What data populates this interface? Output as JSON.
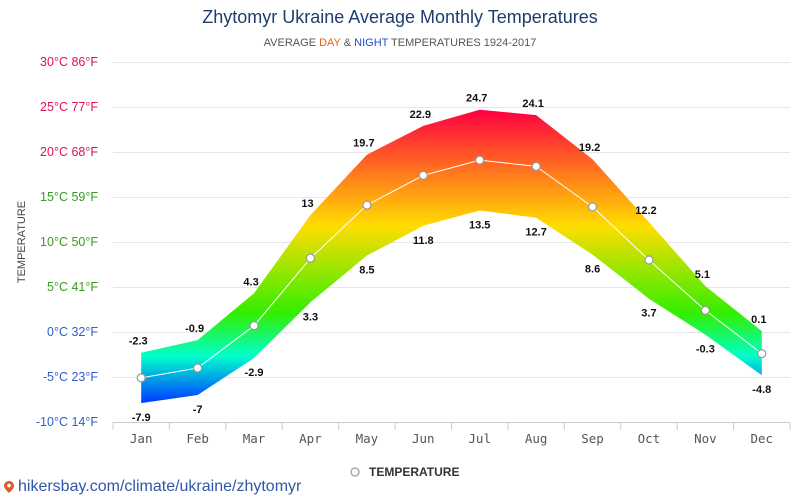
{
  "chart_data": {
    "type": "area",
    "title": "Zhytomyr Ukraine Average Monthly Temperatures",
    "subtitle": {
      "prefix": "AVERAGE ",
      "day": "DAY",
      "amp": " & ",
      "night": "NIGHT",
      "suffix": " TEMPERATURES 1924-2017"
    },
    "ylabel": "TEMPERATURE",
    "categories": [
      "Jan",
      "Feb",
      "Mar",
      "Apr",
      "May",
      "Jun",
      "Jul",
      "Aug",
      "Sep",
      "Oct",
      "Nov",
      "Dec"
    ],
    "series": [
      {
        "name": "DAY",
        "values": [
          -2.3,
          -0.9,
          4.3,
          13,
          19.7,
          22.9,
          24.7,
          24.1,
          19.2,
          12.2,
          5.1,
          0.1
        ]
      },
      {
        "name": "NIGHT",
        "values": [
          -7.9,
          -7,
          -2.9,
          3.3,
          8.5,
          11.8,
          13.5,
          12.7,
          8.6,
          3.7,
          -0.3,
          -4.8
        ]
      },
      {
        "name": "TEMPERATURE",
        "values": [
          -5.1,
          -4,
          0.7,
          8.2,
          14.1,
          17.4,
          19.1,
          18.4,
          13.9,
          8,
          2.4,
          -2.4
        ]
      }
    ],
    "ylim": [
      -10,
      30
    ],
    "yticks": [
      {
        "value": 30,
        "label": "30°C 86°F",
        "color": "#e0105a"
      },
      {
        "value": 25,
        "label": "25°C 77°F",
        "color": "#e0105a"
      },
      {
        "value": 20,
        "label": "20°C 68°F",
        "color": "#e0105a"
      },
      {
        "value": 15,
        "label": "15°C 59°F",
        "color": "#3a9b22"
      },
      {
        "value": 10,
        "label": "10°C 50°F",
        "color": "#3a9b22"
      },
      {
        "value": 5,
        "label": "5°C 41°F",
        "color": "#3a9b22"
      },
      {
        "value": 0,
        "label": "0°C 32°F",
        "color": "#2b5fcf"
      },
      {
        "value": -5,
        "label": "-5°C 23°F",
        "color": "#2b5fcf"
      },
      {
        "value": -10,
        "label": "-10°C 14°F",
        "color": "#2b5fcf"
      }
    ],
    "grid": true,
    "legend_position": "bottom-center",
    "colors": {
      "day_accent": "#e8630a",
      "night_accent": "#1f4fc7",
      "title": "#1f3d6b",
      "hot": "#ff0040",
      "warm": "#ffdd00",
      "mild": "#33ee00",
      "cool": "#00ffcc",
      "cold": "#0044ff"
    }
  },
  "footer": {
    "url": "hikersbay.com/climate/ukraine/zhytomyr",
    "icon": "map-pin-icon"
  }
}
